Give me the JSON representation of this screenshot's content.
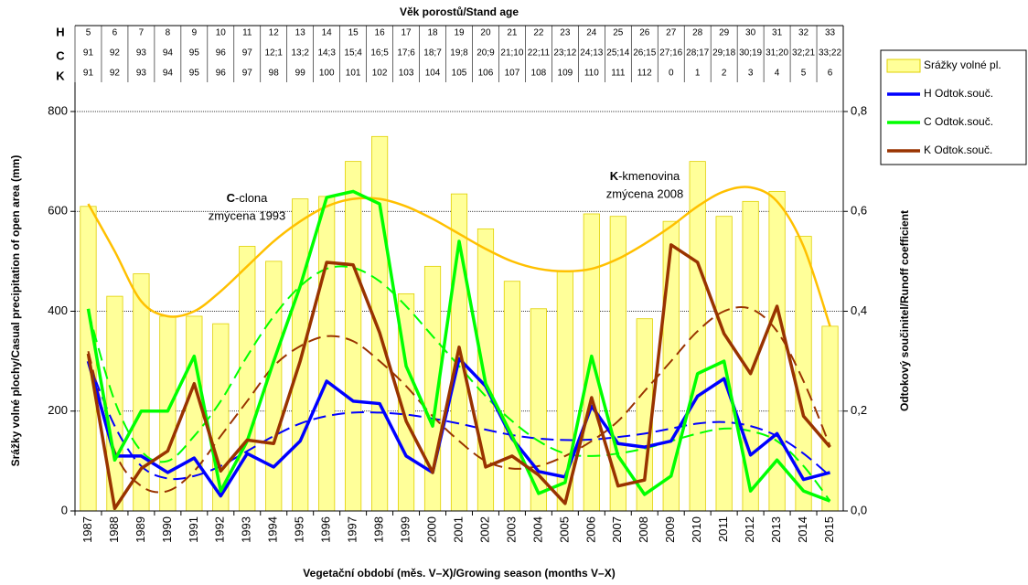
{
  "chart_data": {
    "type": "combo",
    "title": "Věk porostů/Stand age",
    "x_label": "Vegetační období (měs. V–X)/Growing season (months V–X)",
    "y_label": "Srážky volné plochy/Casual precipitation of open area (mm)",
    "y2_label": "Odtokový součinitel/Runoff coefficient",
    "categories": [
      "1987",
      "1988",
      "1989",
      "1990",
      "1991",
      "1992",
      "1993",
      "1994",
      "1995",
      "1996",
      "1997",
      "1998",
      "1999",
      "2000",
      "2001",
      "2002",
      "2003",
      "2004",
      "2005",
      "2006",
      "2007",
      "2008",
      "2009",
      "2010",
      "2011",
      "2012",
      "2013",
      "2014",
      "2015"
    ],
    "ylim": [
      0,
      800
    ],
    "yticks": [
      0,
      200,
      400,
      600,
      800
    ],
    "y2lim": [
      0,
      0.8
    ],
    "y2ticks": [
      {
        "value": 0,
        "label": "0,0"
      },
      {
        "value": 0.2,
        "label": "0,2"
      },
      {
        "value": 0.4,
        "label": "0,4"
      },
      {
        "value": 0.6,
        "label": "0,6"
      },
      {
        "value": 0.8,
        "label": "0,8"
      }
    ],
    "grid": true,
    "age_table": [
      {
        "label": "H",
        "cells": [
          5,
          6,
          7,
          8,
          9,
          10,
          11,
          12,
          13,
          14,
          15,
          16,
          17,
          18,
          19,
          20,
          21,
          22,
          23,
          24,
          25,
          26,
          27,
          28,
          29,
          30,
          31,
          32,
          33
        ]
      },
      {
        "label": "C",
        "cells": [
          91,
          92,
          93,
          94,
          95,
          96,
          97,
          "12;1",
          "13;2",
          "14;3",
          "15;4",
          "16;5",
          "17;6",
          "18;7",
          "19;8",
          "20;9",
          "21;10",
          "22;11",
          "23;12",
          "24;13",
          "25;14",
          "26;15",
          "27;16",
          "28;17",
          "29;18",
          "30;19",
          "31;20",
          "32;21",
          "33;22"
        ]
      },
      {
        "label": "K",
        "cells": [
          91,
          92,
          93,
          94,
          95,
          96,
          97,
          98,
          99,
          100,
          101,
          102,
          103,
          104,
          105,
          106,
          107,
          108,
          109,
          110,
          111,
          112,
          0,
          1,
          2,
          3,
          4,
          5,
          6
        ]
      }
    ],
    "series": [
      {
        "name": "Srážky volné pl.",
        "type": "bar",
        "color": "#ffff99",
        "values": [
          610,
          430,
          475,
          390,
          390,
          375,
          530,
          500,
          625,
          630,
          700,
          750,
          435,
          490,
          635,
          565,
          460,
          405,
          480,
          595,
          590,
          385,
          580,
          700,
          590,
          620,
          640,
          550,
          370
        ]
      },
      {
        "name": "H Odtok.souč.",
        "type": "line",
        "axis": "y2",
        "color": "#0000ff",
        "values": [
          0.3,
          0.11,
          0.11,
          0.077,
          0.106,
          0.03,
          0.115,
          0.088,
          0.14,
          0.26,
          0.22,
          0.215,
          0.11,
          0.077,
          0.305,
          0.25,
          0.145,
          0.079,
          0.068,
          0.21,
          0.135,
          0.128,
          0.14,
          0.23,
          0.265,
          0.112,
          0.155,
          0.063,
          0.077
        ]
      },
      {
        "name": "C Odtok.souč.",
        "type": "line",
        "axis": "y2",
        "color": "#00ff00",
        "values": [
          0.405,
          0.102,
          0.2,
          0.2,
          0.31,
          0.04,
          0.14,
          0.3,
          0.45,
          0.628,
          0.64,
          0.615,
          0.29,
          0.17,
          0.54,
          0.255,
          0.15,
          0.035,
          0.057,
          0.31,
          0.11,
          0.033,
          0.07,
          0.275,
          0.3,
          0.04,
          0.102,
          0.04,
          0.02
        ]
      },
      {
        "name": "K Odtok.souč.",
        "type": "line",
        "axis": "y2",
        "color": "#993300",
        "values": [
          0.315,
          0.005,
          0.085,
          0.12,
          0.255,
          0.08,
          0.142,
          0.135,
          0.3,
          0.498,
          0.493,
          0.357,
          0.18,
          0.077,
          0.328,
          0.088,
          0.11,
          0.072,
          0.015,
          0.227,
          0.05,
          0.062,
          0.533,
          0.498,
          0.355,
          0.275,
          0.41,
          0.19,
          0.128
        ]
      }
    ],
    "trendlines": [
      {
        "axis": "y",
        "color": "#ffc000",
        "dashed": false,
        "values": [
          615,
          520,
          420,
          390,
          400,
          440,
          490,
          540,
          580,
          610,
          625,
          625,
          610,
          585,
          555,
          525,
          500,
          485,
          480,
          485,
          505,
          535,
          570,
          610,
          640,
          648,
          620,
          530,
          370
        ]
      },
      {
        "axis": "y2",
        "color": "#0000ff",
        "dashed": true,
        "values": [
          0.3,
          0.17,
          0.09,
          0.065,
          0.07,
          0.09,
          0.12,
          0.15,
          0.175,
          0.19,
          0.197,
          0.197,
          0.193,
          0.185,
          0.175,
          0.163,
          0.152,
          0.145,
          0.142,
          0.143,
          0.148,
          0.155,
          0.165,
          0.175,
          0.178,
          0.17,
          0.15,
          0.115,
          0.07
        ]
      },
      {
        "axis": "y2",
        "color": "#00ff00",
        "dashed": true,
        "values": [
          0.4,
          0.22,
          0.12,
          0.1,
          0.15,
          0.22,
          0.31,
          0.39,
          0.45,
          0.485,
          0.487,
          0.46,
          0.41,
          0.35,
          0.29,
          0.23,
          0.18,
          0.14,
          0.115,
          0.11,
          0.115,
          0.125,
          0.14,
          0.155,
          0.165,
          0.16,
          0.14,
          0.09,
          0.02
        ]
      },
      {
        "axis": "y2",
        "color": "#993300",
        "dashed": true,
        "values": [
          0.32,
          0.12,
          0.05,
          0.04,
          0.08,
          0.15,
          0.22,
          0.29,
          0.33,
          0.35,
          0.34,
          0.3,
          0.25,
          0.19,
          0.14,
          0.1,
          0.085,
          0.09,
          0.11,
          0.14,
          0.18,
          0.24,
          0.3,
          0.36,
          0.4,
          0.405,
          0.36,
          0.26,
          0.13
        ]
      }
    ],
    "annotations": [
      {
        "bold": "C",
        "text": "-clona",
        "line2": "zmýcena 1993"
      },
      {
        "bold": "K",
        "text": "-kmenovina",
        "line2": "zmýcena 2008"
      }
    ]
  }
}
